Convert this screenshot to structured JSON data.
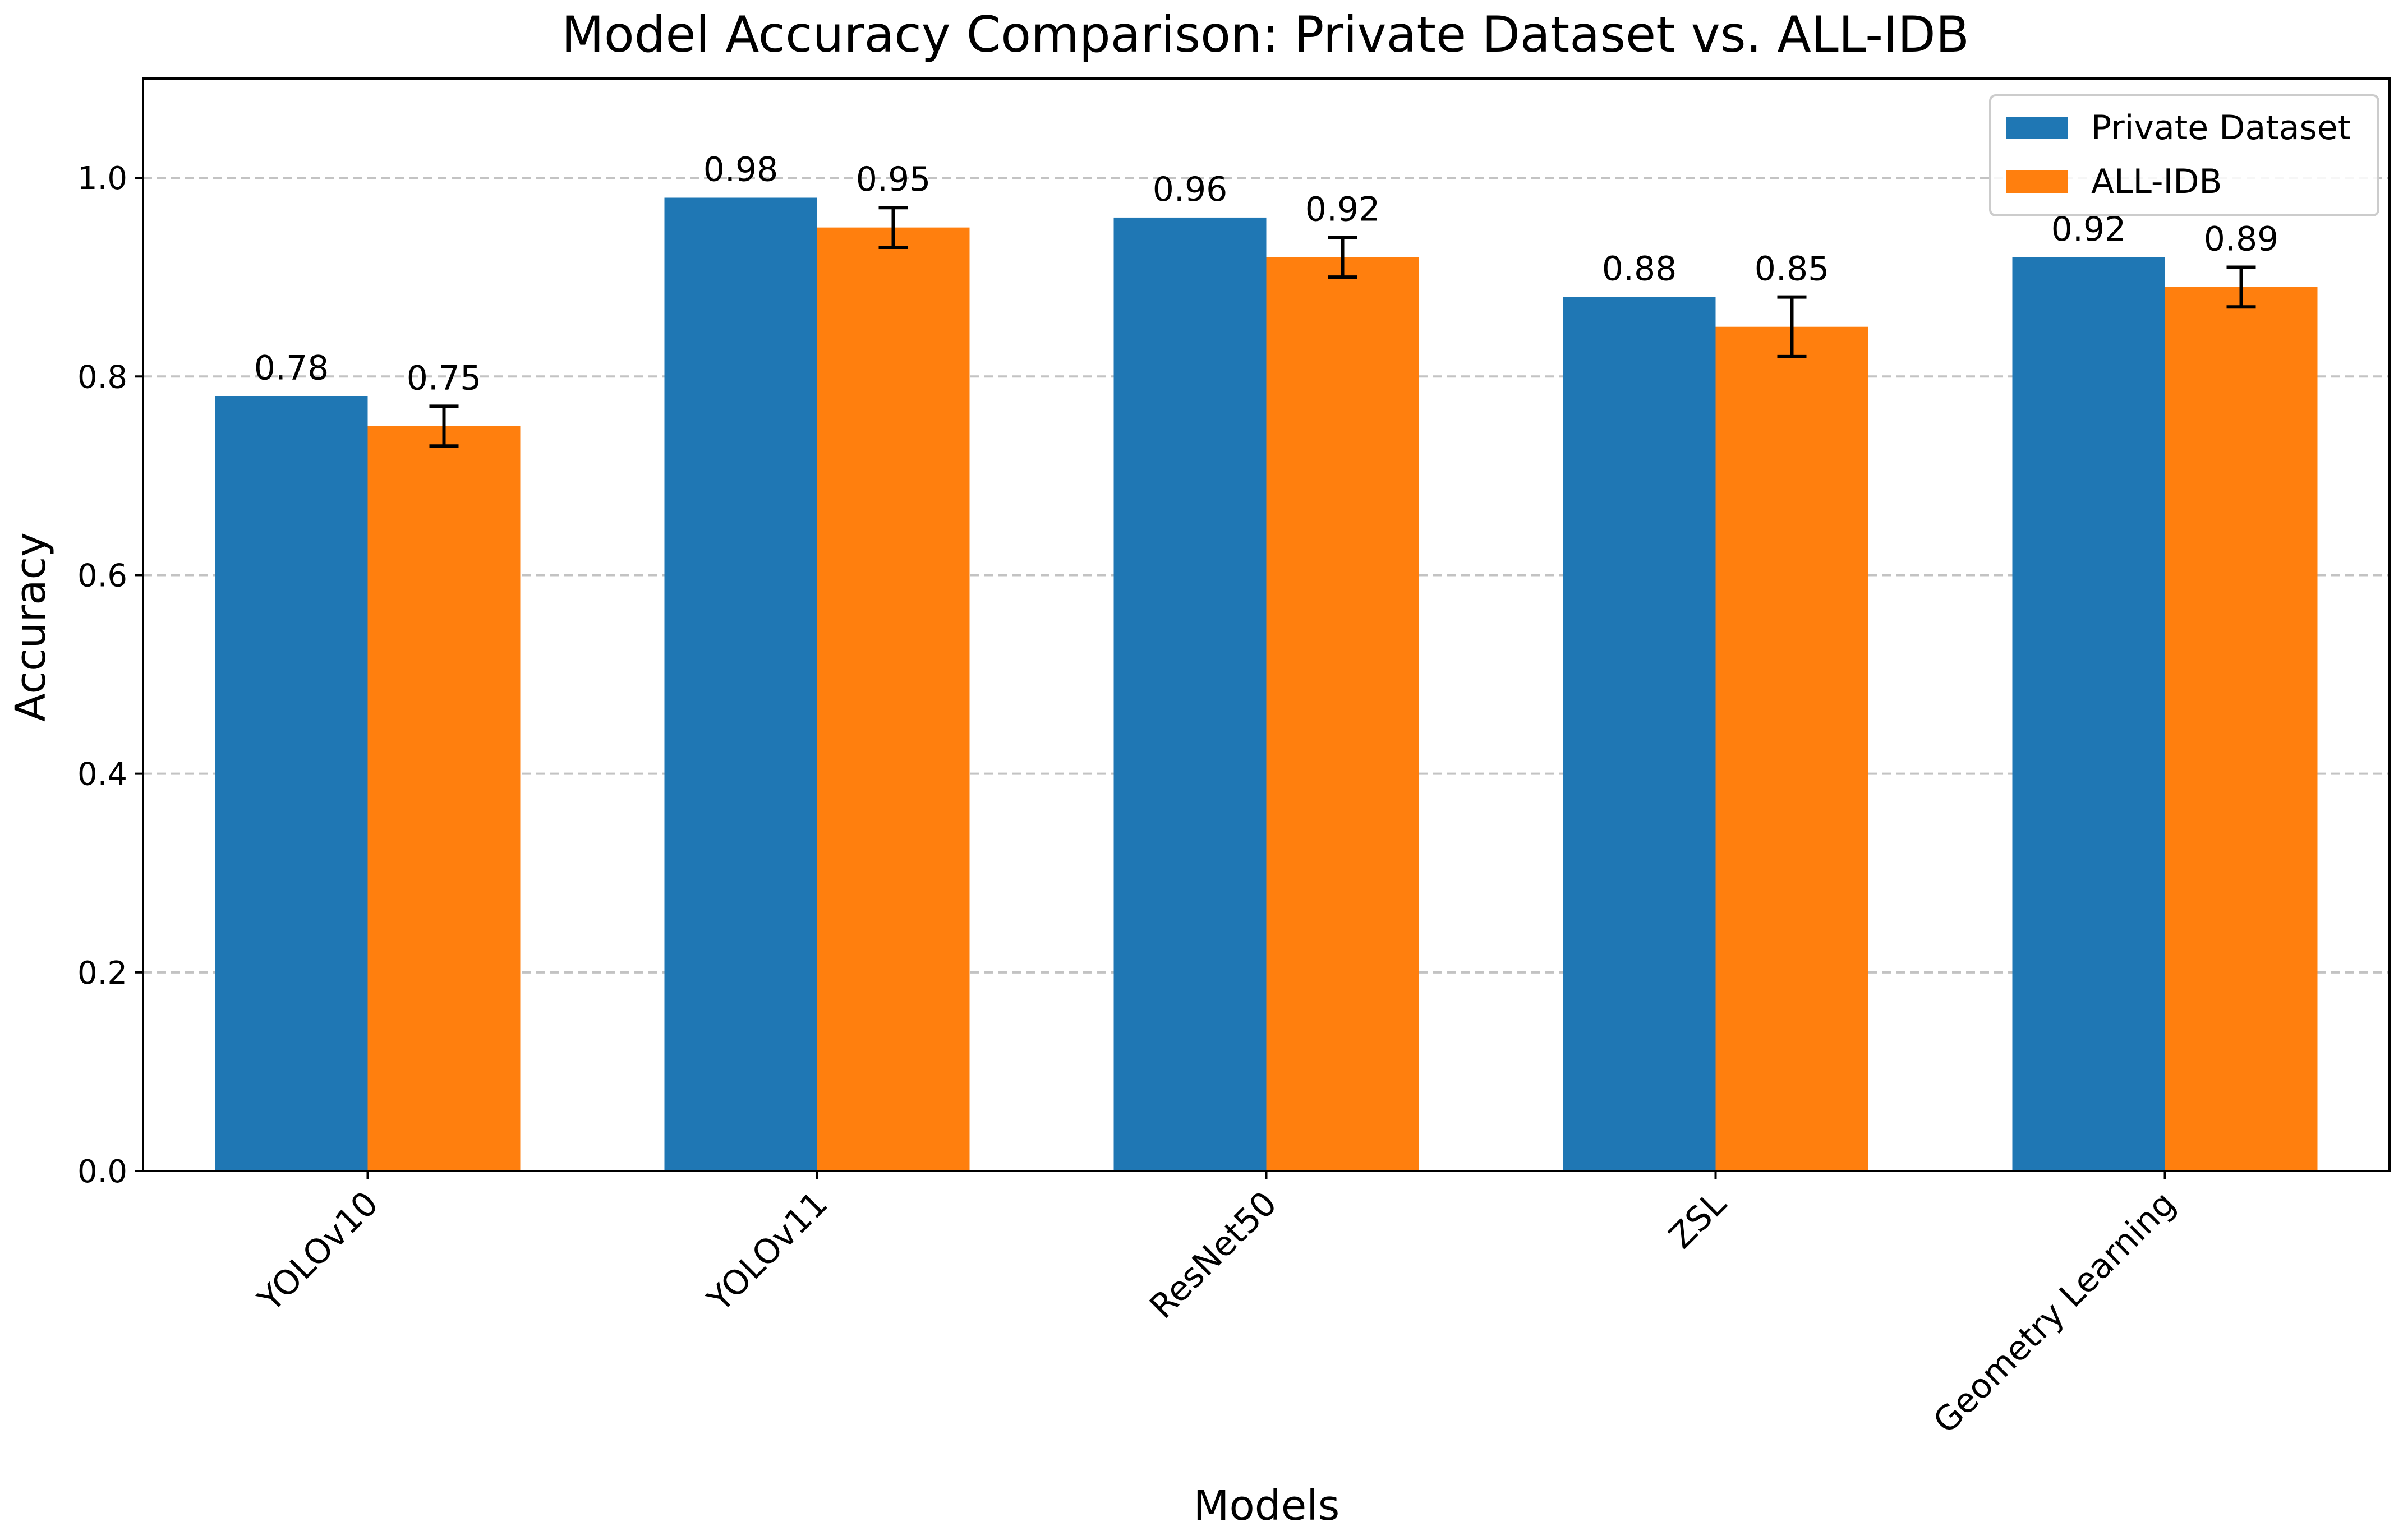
{
  "chart_data": {
    "type": "bar",
    "title": "Model Accuracy Comparison: Private Dataset vs. ALL-IDB",
    "xlabel": "Models",
    "ylabel": "Accuracy",
    "categories": [
      "YOLOv10",
      "YOLOv11",
      "ResNet50",
      "ZSL",
      "Geometry Learning"
    ],
    "ylim": [
      0,
      1.1
    ],
    "yticks": [
      0.0,
      0.2,
      0.4,
      0.6,
      0.8,
      1.0
    ],
    "ytick_labels": [
      "0.0",
      "0.2",
      "0.4",
      "0.6",
      "0.8",
      "1.0"
    ],
    "grid": "y-dashed",
    "legend_position": "top-right",
    "series": [
      {
        "name": "Private Dataset",
        "color": "#1f77b4",
        "values": [
          0.78,
          0.98,
          0.96,
          0.88,
          0.92
        ],
        "labels": [
          "0.78",
          "0.98",
          "0.96",
          "0.88",
          "0.92"
        ]
      },
      {
        "name": "ALL-IDB",
        "color": "#ff7f0e",
        "values": [
          0.75,
          0.95,
          0.92,
          0.85,
          0.89
        ],
        "labels": [
          "0.75",
          "0.95",
          "0.92",
          "0.85",
          "0.89"
        ],
        "errors": [
          0.02,
          0.02,
          0.02,
          0.03,
          0.02
        ]
      }
    ]
  }
}
